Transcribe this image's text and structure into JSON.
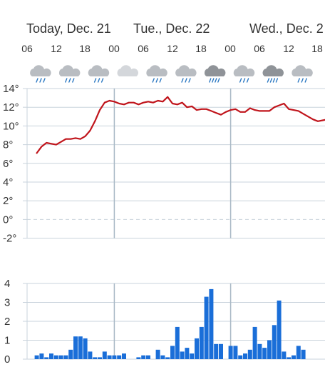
{
  "header": {
    "days": [
      "Today, Dec. 21",
      "Tue., Dec. 22",
      "Wed., Dec. 2"
    ],
    "hours": [
      "06",
      "12",
      "18",
      "00",
      "06",
      "12",
      "18",
      "00",
      "06",
      "12",
      "18"
    ]
  },
  "weather_icons": [
    "light-rain-icon",
    "light-rain-icon",
    "light-rain-icon",
    "cloudy-icon",
    "light-rain-icon",
    "light-rain-icon",
    "heavy-rain-icon",
    "light-rain-icon",
    "heavy-rain-icon",
    "light-rain-icon"
  ],
  "colors": {
    "temperature": "#c0141b",
    "precipitation": "#1a6ed8",
    "grid": "#c9d3dc",
    "day_line": "#a9b9c6"
  },
  "chart_data": [
    {
      "type": "line",
      "title": "",
      "ylabel": "",
      "y_unit": "°",
      "ylim": [
        -2,
        14
      ],
      "yticks": [
        "14°",
        "12°",
        "10°",
        "8°",
        "6°",
        "4°",
        "2°",
        "0°",
        "-2°"
      ],
      "x_unit": "hours from Dec. 21 00:00",
      "x": [
        8,
        9,
        10,
        11,
        12,
        13,
        14,
        15,
        16,
        17,
        18,
        19,
        20,
        21,
        22,
        23,
        24,
        25,
        26,
        27,
        28,
        29,
        30,
        31,
        32,
        33,
        34,
        35,
        36,
        37,
        38,
        39,
        40,
        41,
        42,
        43,
        44,
        45,
        46,
        47,
        48,
        49,
        50,
        51,
        52,
        53,
        54,
        55,
        56,
        57,
        58,
        59,
        60,
        61,
        62,
        63,
        64,
        65,
        66,
        67,
        68
      ],
      "series": [
        {
          "name": "",
          "values": [
            7.1,
            7.8,
            8.2,
            8.1,
            8.0,
            8.3,
            8.6,
            8.6,
            8.7,
            8.6,
            8.9,
            9.5,
            10.5,
            11.7,
            12.5,
            12.7,
            12.6,
            12.4,
            12.3,
            12.5,
            12.5,
            12.3,
            12.5,
            12.6,
            12.5,
            12.7,
            12.6,
            13.1,
            12.4,
            12.3,
            12.5,
            12.0,
            12.1,
            11.7,
            11.8,
            11.8,
            11.6,
            11.4,
            11.2,
            11.5,
            11.7,
            11.8,
            11.5,
            11.5,
            11.9,
            11.7,
            11.6,
            11.6,
            11.6,
            12.0,
            12.2,
            12.4,
            11.8,
            11.7,
            11.6,
            11.3,
            11.0,
            10.7,
            10.5,
            10.6,
            10.7
          ]
        }
      ]
    },
    {
      "type": "bar",
      "title": "",
      "ylabel": "",
      "ylim": [
        0,
        4
      ],
      "yticks": [
        "4",
        "3",
        "2",
        "1",
        "0"
      ],
      "x_unit": "hours from Dec. 21 00:00",
      "x": [
        8,
        9,
        10,
        11,
        12,
        13,
        14,
        15,
        16,
        17,
        18,
        19,
        20,
        21,
        22,
        23,
        24,
        25,
        26,
        27,
        28,
        29,
        30,
        31,
        32,
        33,
        34,
        35,
        36,
        37,
        38,
        39,
        40,
        41,
        42,
        43,
        44,
        45,
        46,
        47,
        48,
        49,
        50,
        51,
        52,
        53,
        54,
        55,
        56,
        57,
        58,
        59,
        60,
        61,
        62,
        63,
        64,
        65,
        66,
        67,
        68
      ],
      "values": [
        0.2,
        0.3,
        0.1,
        0.3,
        0.2,
        0.2,
        0.2,
        0.5,
        1.2,
        1.2,
        1.1,
        0.4,
        0.1,
        0.1,
        0.4,
        0.2,
        0.2,
        0.2,
        0.3,
        0.0,
        0.0,
        0.1,
        0.2,
        0.2,
        0.0,
        0.5,
        0.2,
        0.1,
        0.7,
        1.7,
        0.4,
        0.6,
        0.3,
        1.1,
        1.7,
        3.3,
        3.7,
        0.8,
        0.8,
        0.0,
        0.7,
        0.7,
        0.2,
        0.3,
        0.5,
        1.7,
        0.8,
        0.6,
        1.0,
        1.8,
        3.1,
        0.4,
        0.1,
        0.2,
        0.7,
        0.5,
        0.0,
        0.0,
        0.0,
        0.0,
        0.1
      ]
    }
  ]
}
